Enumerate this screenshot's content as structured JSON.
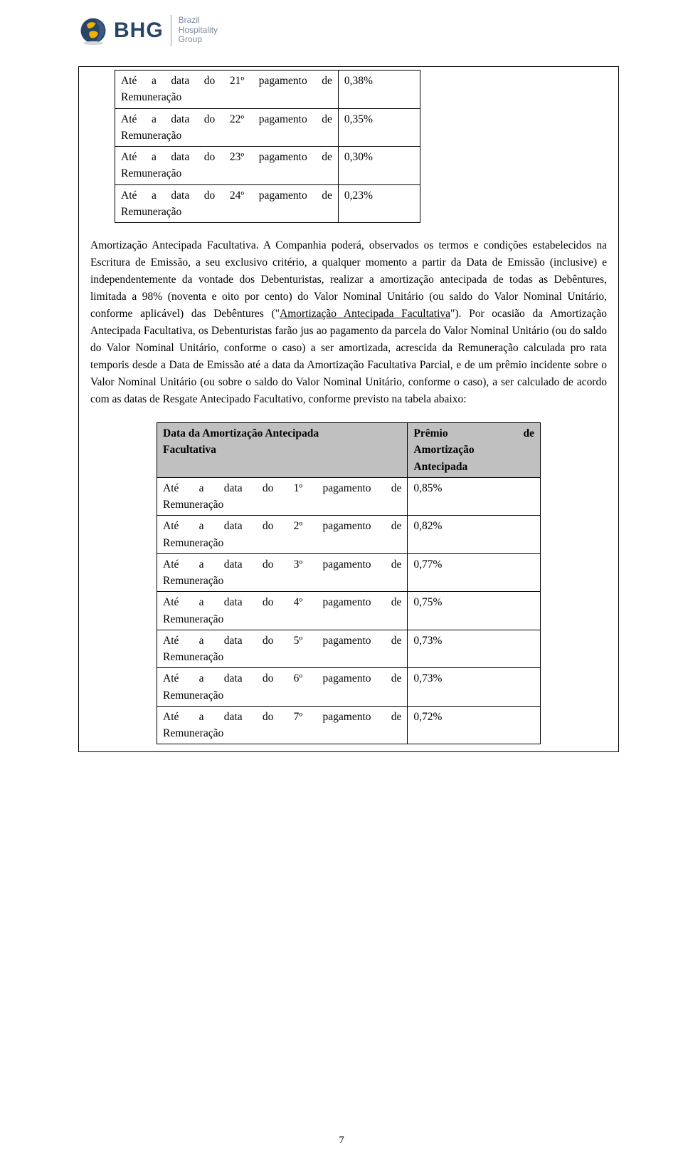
{
  "logo": {
    "acronym": "BHG",
    "line1": "Brazil",
    "line2": "Hospitality",
    "line3": "Group",
    "globe_colors": {
      "outer": "#2a4468",
      "land": "#f2b200",
      "shadow": "#d6d6d6"
    },
    "text_color": "#2a4468",
    "sub_color": "#7b8ba0"
  },
  "top_table": {
    "rows": [
      {
        "label_l1": "Até a data do 21º pagamento de",
        "label_l2": "Remuneração",
        "value": "0,38%"
      },
      {
        "label_l1": "Até a data do 22º pagamento de",
        "label_l2": "Remuneração",
        "value": "0,35%"
      },
      {
        "label_l1": "Até a data do 23º pagamento de",
        "label_l2": "Remuneração",
        "value": "0,30%"
      },
      {
        "label_l1": "Até a data do 24º pagamento de",
        "label_l2": "Remuneração",
        "value": "0,23%"
      }
    ]
  },
  "paragraph": {
    "lead": "Amortização Antecipada Facultativa",
    "text_after_lead": ". A Companhia poderá, observados os termos e condições estabelecidos na Escritura de Emissão, a seu exclusivo critério, a qualquer momento a partir da Data de Emissão (inclusive) e independentemente da vontade dos Debenturistas, realizar a amortização antecipada de todas as Debêntures, limitada a 98% (noventa e oito por cento) do Valor Nominal Unitário (ou saldo do Valor Nominal Unitário, conforme aplicável) das Debêntures (\"",
    "underlined": "Amortização Antecipada Facultativa",
    "after_underline": "\"). Por ocasião da Amortização Antecipada Facultativa, os Debenturistas farão jus ao pagamento da parcela do Valor Nominal Unitário (ou do saldo do Valor Nominal Unitário, conforme o caso) a ser amortizada, acrescida da Remuneração calculada pro rata temporis desde a Data de Emissão até a data da Amortização Facultativa Parcial, e de um prêmio incidente sobre o Valor Nominal Unitário (ou sobre o saldo do Valor Nominal Unitário, conforme o caso), a ser calculado de acordo com as datas de Resgate Antecipado Facultativo, conforme previsto na tabela abaixo:"
  },
  "bottom_table": {
    "header_left_l1": "Data da Amortização Antecipada",
    "header_left_l2": "Facultativa",
    "header_right_w1": "Prêmio",
    "header_right_w2": "de",
    "header_right_l2": "Amortização",
    "header_right_l3": "Antecipada",
    "rows": [
      {
        "label_l1": "Até a data do 1º pagamento de",
        "label_l2": "Remuneração",
        "value": "0,85%"
      },
      {
        "label_l1": "Até a data do 2º pagamento de",
        "label_l2": "Remuneração",
        "value": "0,82%"
      },
      {
        "label_l1": "Até a data do 3º pagamento de",
        "label_l2": "Remuneração",
        "value": "0,77%"
      },
      {
        "label_l1": "Até a data do 4º pagamento de",
        "label_l2": "Remuneração",
        "value": "0,75%"
      },
      {
        "label_l1": "Até a data do 5º pagamento de",
        "label_l2": "Remuneração",
        "value": "0,73%"
      },
      {
        "label_l1": "Até a data do 6º pagamento de",
        "label_l2": "Remuneração",
        "value": "0,73%"
      },
      {
        "label_l1": "Até a data do 7º pagamento de",
        "label_l2": "Remuneração",
        "value": "0,72%"
      }
    ]
  },
  "page_number": "7"
}
